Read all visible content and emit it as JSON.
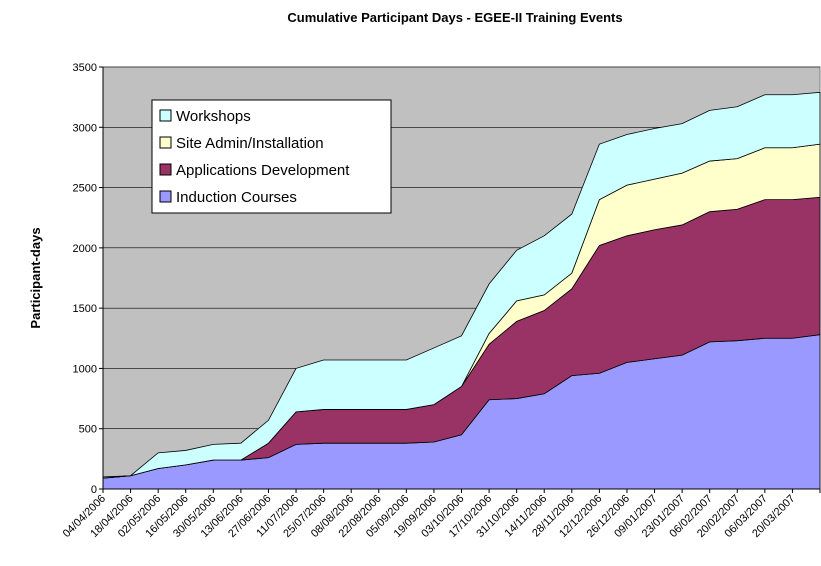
{
  "chart_data": {
    "type": "stacked_area",
    "title": "Cumulative Participant Days - EGEE-II Training Events",
    "y_label": "Participant-days",
    "categories": [
      "04/04/2006",
      "18/04/2006",
      "02/05/2006",
      "16/05/2006",
      "30/05/2006",
      "13/06/2006",
      "27/06/2006",
      "11/07/2006",
      "25/07/2006",
      "08/08/2006",
      "22/08/2006",
      "05/09/2006",
      "19/09/2006",
      "03/10/2006",
      "17/10/2006",
      "31/10/2006",
      "14/11/2006",
      "28/11/2006",
      "12/12/2006",
      "26/12/2006",
      "09/01/2007",
      "23/01/2007",
      "06/02/2007",
      "20/02/2007",
      "06/03/2007",
      "20/03/2007",
      null
    ],
    "series": [
      {
        "name": "Induction Courses",
        "color": "#9999ff",
        "values": [
          90,
          110,
          170,
          200,
          240,
          240,
          260,
          370,
          380,
          380,
          380,
          380,
          390,
          450,
          740,
          750,
          790,
          940,
          960,
          1050,
          1080,
          1110,
          1220,
          1230,
          1250,
          1250,
          1280
        ]
      },
      {
        "name": "Applications Development",
        "color": "#993366",
        "values": [
          0,
          0,
          0,
          0,
          0,
          0,
          120,
          270,
          280,
          280,
          280,
          280,
          310,
          400,
          460,
          640,
          690,
          720,
          1060,
          1050,
          1070,
          1080,
          1080,
          1090,
          1150,
          1150,
          1140
        ]
      },
      {
        "name": "Site Admin/Installation",
        "color": "#ffffcc",
        "values": [
          0,
          0,
          0,
          0,
          0,
          0,
          0,
          0,
          0,
          0,
          0,
          0,
          0,
          0,
          90,
          170,
          130,
          130,
          380,
          420,
          420,
          430,
          420,
          420,
          430,
          430,
          440
        ]
      },
      {
        "name": "Workshops",
        "color": "#ccffff",
        "values": [
          10,
          0,
          130,
          120,
          130,
          140,
          190,
          360,
          410,
          410,
          410,
          410,
          470,
          420,
          410,
          420,
          490,
          490,
          460,
          420,
          420,
          410,
          420,
          430,
          440,
          440,
          430
        ]
      }
    ],
    "ylim": [
      0,
      3500
    ],
    "yticks": [
      0,
      500,
      1000,
      1500,
      2000,
      2500,
      3000,
      3500
    ],
    "grid": true,
    "legend": "upper left",
    "background": "#c0c0c0"
  }
}
